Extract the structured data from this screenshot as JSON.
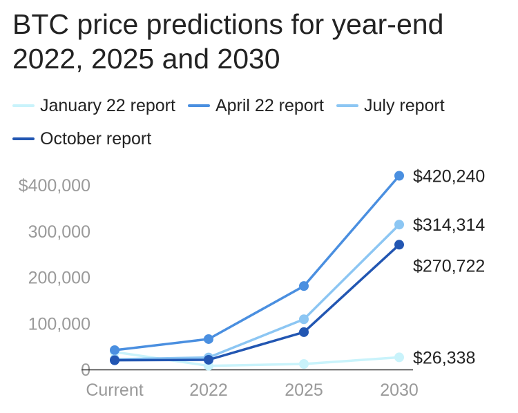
{
  "chart_data": {
    "type": "line",
    "title": "BTC price predictions for year-end 2022, 2025 and 2030",
    "categories": [
      "Current",
      "2022",
      "2025",
      "2030"
    ],
    "y_ticks": [
      "0",
      "100,000",
      "200,000",
      "300,000",
      "$400,000"
    ],
    "ylim": [
      0,
      400000
    ],
    "grid": false,
    "legend": "top",
    "series": [
      {
        "name": "January 22 report",
        "color": "#c9f3fb",
        "values": [
          38000,
          8000,
          12000,
          26338
        ],
        "end_label": "$26,338"
      },
      {
        "name": "April 22 report",
        "color": "#4a8fe0",
        "values": [
          42000,
          66000,
          181000,
          420240
        ],
        "end_label": "$420,240"
      },
      {
        "name": "July report",
        "color": "#8cc6f3",
        "values": [
          22000,
          26000,
          109000,
          314314
        ],
        "end_label": "$314,314"
      },
      {
        "name": "October report",
        "color": "#2256b2",
        "values": [
          20000,
          21000,
          81000,
          270722
        ],
        "end_label": "$270,722"
      }
    ]
  }
}
